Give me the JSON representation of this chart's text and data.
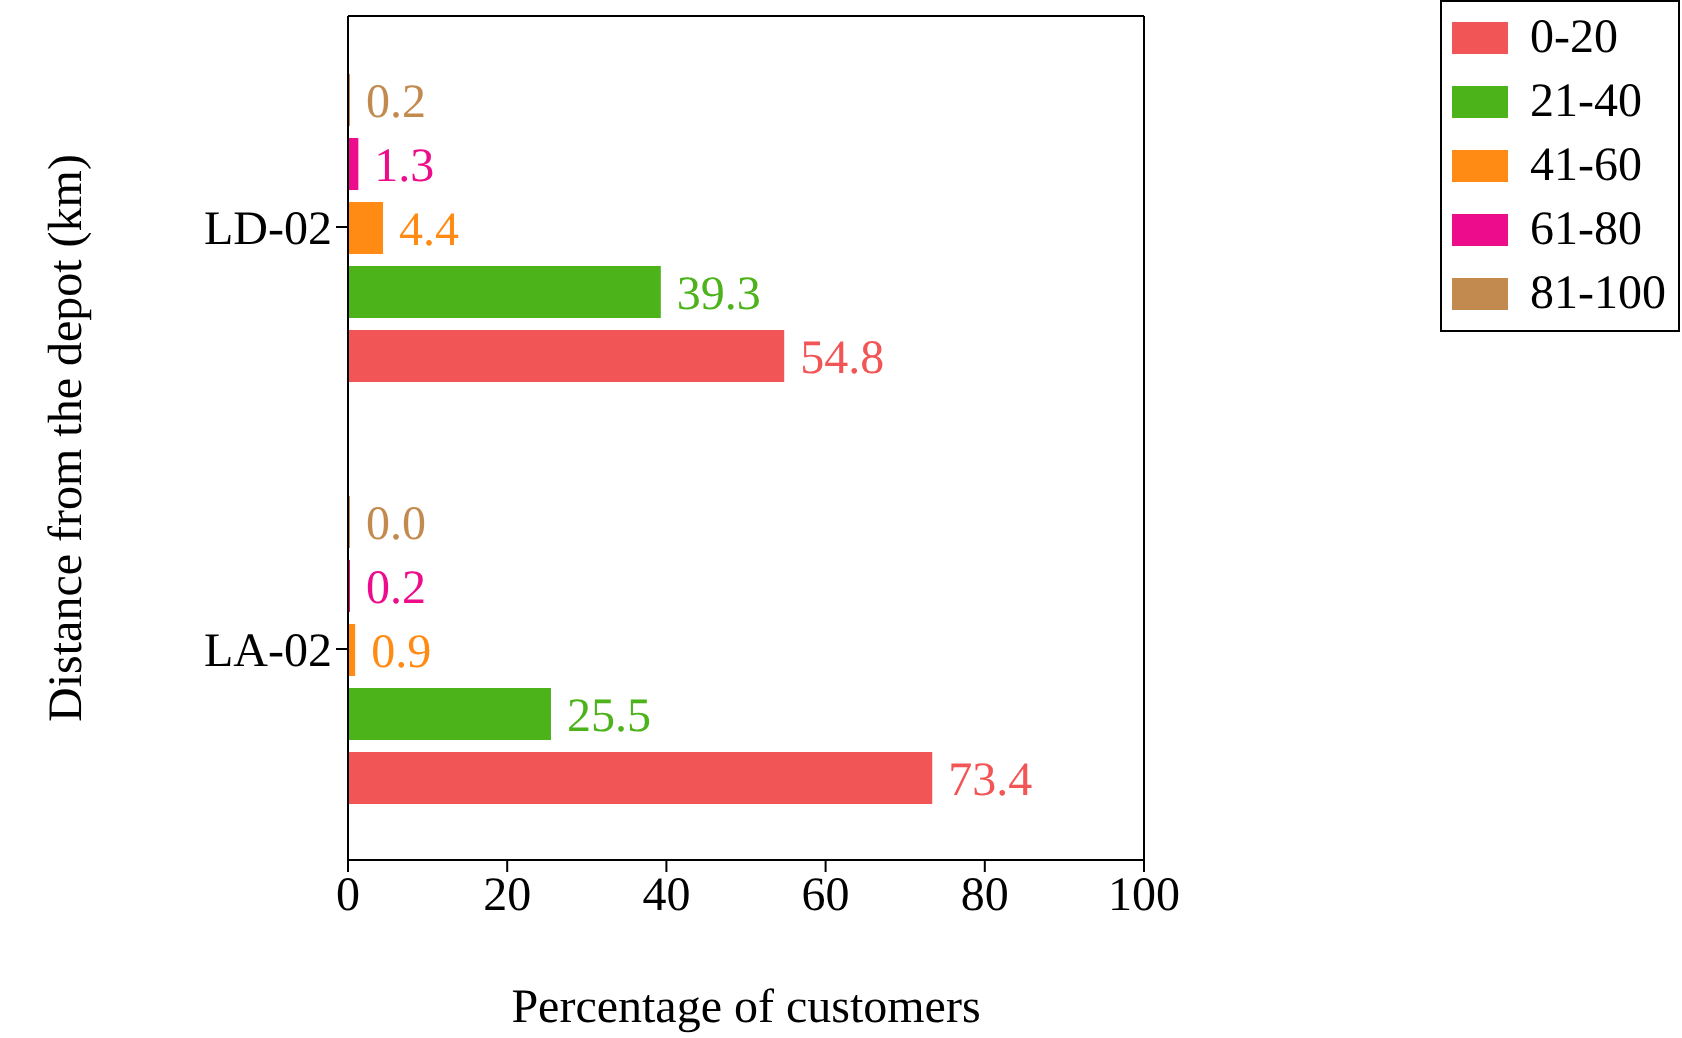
{
  "chart_data": {
    "type": "bar",
    "orientation": "horizontal",
    "xlabel": "Percentage of customers",
    "ylabel": "Distance from the depot (km)",
    "categories": [
      "LD-02",
      "LA-02"
    ],
    "xlim": [
      0,
      100
    ],
    "xticks": [
      0,
      20,
      40,
      60,
      80,
      100
    ],
    "legend": "top right",
    "series": [
      {
        "name": "0-20",
        "color": "#f25555",
        "values": [
          54.8,
          73.4
        ],
        "value_labels": [
          "54.8",
          "73.4"
        ]
      },
      {
        "name": "21-40",
        "color": "#4db31a",
        "values": [
          39.3,
          25.5
        ],
        "value_labels": [
          "39.3",
          "25.5"
        ]
      },
      {
        "name": "41-60",
        "color": "#ff8a14",
        "values": [
          4.4,
          0.9
        ],
        "value_labels": [
          "4.4",
          "0.9"
        ]
      },
      {
        "name": "61-80",
        "color": "#ec0c8c",
        "values": [
          1.3,
          0.2
        ],
        "value_labels": [
          "1.3",
          "0.2"
        ]
      },
      {
        "name": "81-100",
        "color": "#c28a4e",
        "values": [
          0.2,
          0.0
        ],
        "value_labels": [
          "0.2",
          "0.0"
        ]
      }
    ]
  }
}
